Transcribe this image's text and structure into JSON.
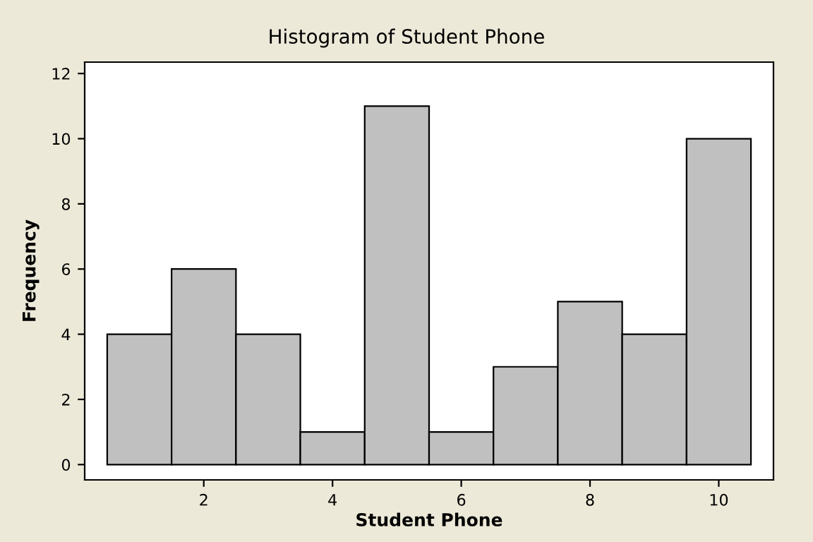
{
  "chart_data": {
    "type": "histogram",
    "title": "Histogram of Student Phone",
    "xlabel": "Student Phone",
    "ylabel": "Frequency",
    "bins": [
      0.5,
      1.5,
      2.5,
      3.5,
      4.5,
      5.5,
      6.5,
      7.5,
      8.5,
      9.5,
      10.5
    ],
    "values": [
      4,
      6,
      4,
      1,
      11,
      1,
      3,
      5,
      4,
      10
    ],
    "color": "#c0c0c0",
    "xlim": [
      0.15,
      10.85
    ],
    "xticks": [
      2,
      4,
      6,
      8,
      10
    ],
    "ylim": [
      -0.47,
      12.35
    ],
    "yticks": [
      0,
      2,
      4,
      6,
      8,
      10,
      12
    ],
    "grid": false
  }
}
